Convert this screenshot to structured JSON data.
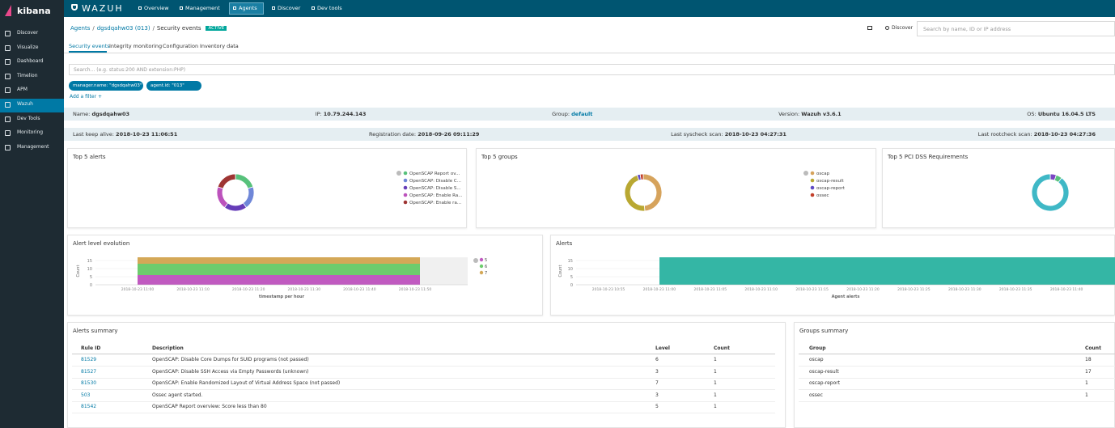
{
  "sidebar": {
    "brand": "kibana",
    "items": [
      "Discover",
      "Visualize",
      "Dashboard",
      "Timelion",
      "APM",
      "Wazuh",
      "Dev Tools",
      "Monitoring",
      "Management"
    ]
  },
  "topnav": {
    "brand": "WAZUH",
    "tabs": [
      "Overview",
      "Management",
      "Agents",
      "Discover",
      "Dev tools"
    ]
  },
  "breadcrumb": {
    "items": [
      "Agents",
      "dgsdqahw03 (013)",
      "Security events"
    ],
    "status": "ACTIVE"
  },
  "toolbar": {
    "discover": "Discover",
    "search_placeholder": "Search by name, ID or IP address"
  },
  "tabs": [
    "Security events",
    "Integrity monitoring",
    "Configuration",
    "Inventory data"
  ],
  "query_placeholder": "Search... (e.g. status:200 AND extension:PHP)",
  "filters": [
    "manager.name: \"dgsdqahw03\"",
    "agent.id: \"013\""
  ],
  "add_filter": "Add a filter +",
  "agent_info": [
    {
      "label": "Name:",
      "value": "dgsdqahw03"
    },
    {
      "label": "IP:",
      "value": "10.79.244.143"
    },
    {
      "label": "Group:",
      "value": "default"
    },
    {
      "label": "Version:",
      "value": "Wazuh v3.6.1"
    },
    {
      "label": "OS:",
      "value": "Ubuntu 16.04.5 LTS"
    }
  ],
  "agent_dates": [
    {
      "label": "Last keep alive:",
      "value": "2018-10-23 11:06:51"
    },
    {
      "label": "Registration date:",
      "value": "2018-09-26 09:11:29"
    },
    {
      "label": "Last syscheck scan:",
      "value": "2018-10-23 04:27:31"
    },
    {
      "label": "Last rootcheck scan:",
      "value": "2018-10-23 04:27:36"
    }
  ],
  "panels": {
    "top_alerts": {
      "title": "Top 5 alerts",
      "type": "pie",
      "labels": [
        "OpenSCAP Report ov...",
        "OpenSCAP: Disable C...",
        "OpenSCAP: Disable S...",
        "OpenSCAP: Enable Ra...",
        "OpenSCAP: Enable ra..."
      ],
      "values": [
        1,
        1,
        1,
        1,
        1
      ],
      "colors": [
        "#57c17b",
        "#6f87d8",
        "#663db8",
        "#bc52bc",
        "#9e3533"
      ]
    },
    "top_groups": {
      "title": "Top 5 groups",
      "type": "pie",
      "labels": [
        "oscap",
        "oscap-result",
        "oscap-report",
        "ossec"
      ],
      "values": [
        18,
        17,
        1,
        1
      ],
      "colors": [
        "#d6a35c",
        "#b9a832",
        "#5f4bc4",
        "#c2402b"
      ]
    },
    "top_pci": {
      "title": "Top 5 PCI DSS Requirements",
      "type": "pie",
      "values": [
        1,
        1,
        17
      ],
      "colors": [
        "#7b46c2",
        "#57c17b",
        "#3fb8c6"
      ]
    },
    "level_evolution": {
      "title": "Alert level evolution",
      "type": "bar",
      "stacked": true,
      "y_label": "Count",
      "x_label": "timestamp per hour",
      "x_labels": [
        "2018-10-23 11:00",
        "2018-10-23 11:10",
        "2018-10-23 11:20",
        "2018-10-23 11:30",
        "2018-10-23 11:40",
        "2018-10-23 11:50"
      ],
      "ylim": [
        0,
        17
      ],
      "yticks": [
        0,
        5,
        10,
        15
      ],
      "series": [
        {
          "name": "5",
          "color": "#c05ac0",
          "values": [
            6
          ]
        },
        {
          "name": "6",
          "color": "#6dcc6d",
          "values": [
            7
          ]
        },
        {
          "name": "7",
          "color": "#d4a857",
          "values": [
            4
          ]
        }
      ]
    },
    "alerts": {
      "title": "Alerts",
      "type": "bar",
      "y_label": "Count",
      "x_label": "Agent alerts",
      "x_labels": [
        "2018-10-23 10:55",
        "2018-10-23 11:00",
        "2018-10-23 11:05",
        "2018-10-23 11:10",
        "2018-10-23 11:15",
        "2018-10-23 11:20",
        "2018-10-23 11:25",
        "2018-10-23 11:30",
        "2018-10-23 11:35",
        "2018-10-23 11:40"
      ],
      "ylim": [
        0,
        17
      ],
      "yticks": [
        0,
        5,
        10,
        15
      ],
      "series": [
        {
          "color": "#34b6a5",
          "values": [
            17
          ]
        }
      ]
    }
  },
  "alerts_summary": {
    "title": "Alerts summary",
    "columns": [
      "Rule ID",
      "Description",
      "Level",
      "Count"
    ],
    "rows": [
      [
        "81529",
        "OpenSCAP: Disable Core Dumps for SUID programs (not passed)",
        "6",
        "1"
      ],
      [
        "81527",
        "OpenSCAP: Disable SSH Access via Empty Passwords (unknown)",
        "3",
        "1"
      ],
      [
        "81530",
        "OpenSCAP: Enable Randomized Layout of Virtual Address Space (not passed)",
        "7",
        "1"
      ],
      [
        "503",
        "Ossec agent started.",
        "3",
        "1"
      ],
      [
        "81542",
        "OpenSCAP Report overview: Score less than 80",
        "5",
        "1"
      ]
    ]
  },
  "groups_summary": {
    "title": "Groups summary",
    "columns": [
      "Group",
      "Count"
    ],
    "rows": [
      [
        "oscap",
        "18"
      ],
      [
        "oscap-result",
        "17"
      ],
      [
        "oscap-report",
        "1"
      ],
      [
        "ossec",
        "1"
      ]
    ]
  }
}
